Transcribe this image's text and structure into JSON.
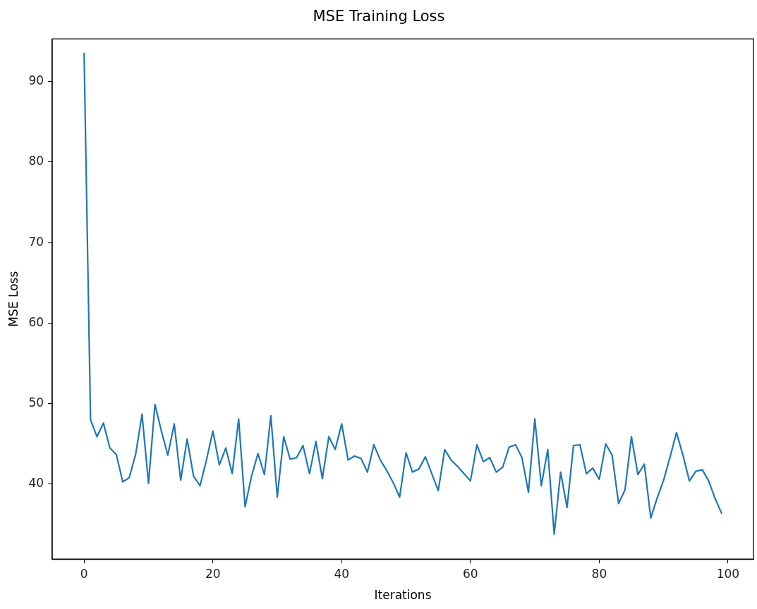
{
  "chart_data": {
    "type": "line",
    "title": "MSE Training Loss",
    "xlabel": "Iterations",
    "ylabel": "MSE Loss",
    "x": [
      0,
      1,
      2,
      3,
      4,
      5,
      6,
      7,
      8,
      9,
      10,
      11,
      12,
      13,
      14,
      15,
      16,
      17,
      18,
      19,
      20,
      21,
      22,
      23,
      24,
      25,
      26,
      27,
      28,
      29,
      30,
      31,
      32,
      33,
      34,
      35,
      36,
      37,
      38,
      39,
      40,
      41,
      42,
      43,
      44,
      45,
      46,
      47,
      48,
      49,
      50,
      51,
      52,
      53,
      54,
      55,
      56,
      57,
      58,
      59,
      60,
      61,
      62,
      63,
      64,
      65,
      66,
      67,
      68,
      69,
      70,
      71,
      72,
      73,
      74,
      75,
      76,
      77,
      78,
      79,
      80,
      81,
      82,
      83,
      84,
      85,
      86,
      87,
      88,
      89,
      90,
      91,
      92,
      93,
      94,
      95,
      96,
      97,
      98,
      99
    ],
    "series": [
      {
        "color": "#1f77b4",
        "values": [
          93.5,
          48.0,
          45.9,
          47.6,
          44.5,
          43.7,
          40.3,
          40.8,
          43.7,
          48.7,
          40.1,
          49.9,
          46.6,
          43.6,
          47.5,
          40.5,
          45.6,
          41.0,
          39.8,
          43.0,
          46.6,
          42.4,
          44.5,
          41.3,
          48.1,
          37.2,
          41.0,
          43.8,
          41.2,
          48.5,
          38.4,
          45.9,
          43.1,
          43.3,
          44.8,
          41.3,
          45.3,
          40.7,
          45.9,
          44.3,
          47.5,
          43.0,
          43.5,
          43.2,
          41.5,
          44.9,
          43.0,
          41.7,
          40.2,
          38.4,
          43.9,
          41.5,
          41.9,
          43.4,
          41.3,
          39.2,
          44.3,
          43.0,
          42.2,
          41.3,
          40.4,
          44.9,
          42.8,
          43.3,
          41.5,
          42.1,
          44.6,
          44.9,
          43.3,
          39.0,
          48.1,
          39.8,
          44.3,
          33.8,
          41.5,
          37.1,
          44.8,
          44.9,
          41.3,
          42.0,
          40.6,
          45.0,
          43.6,
          37.6,
          39.3,
          45.9,
          41.2,
          42.5,
          35.8,
          38.3,
          40.5,
          43.4,
          46.4,
          43.6,
          40.4,
          41.6,
          41.8,
          40.4,
          38.2,
          36.4
        ]
      }
    ],
    "xlim": [
      -4.95,
      103.95
    ],
    "xticks": [
      0,
      20,
      40,
      60,
      80,
      100
    ],
    "ylim": [
      30.7,
      95.3
    ],
    "yticks": [
      40,
      50,
      60,
      70,
      80,
      90
    ],
    "marker": "none",
    "line_style": "solid"
  }
}
